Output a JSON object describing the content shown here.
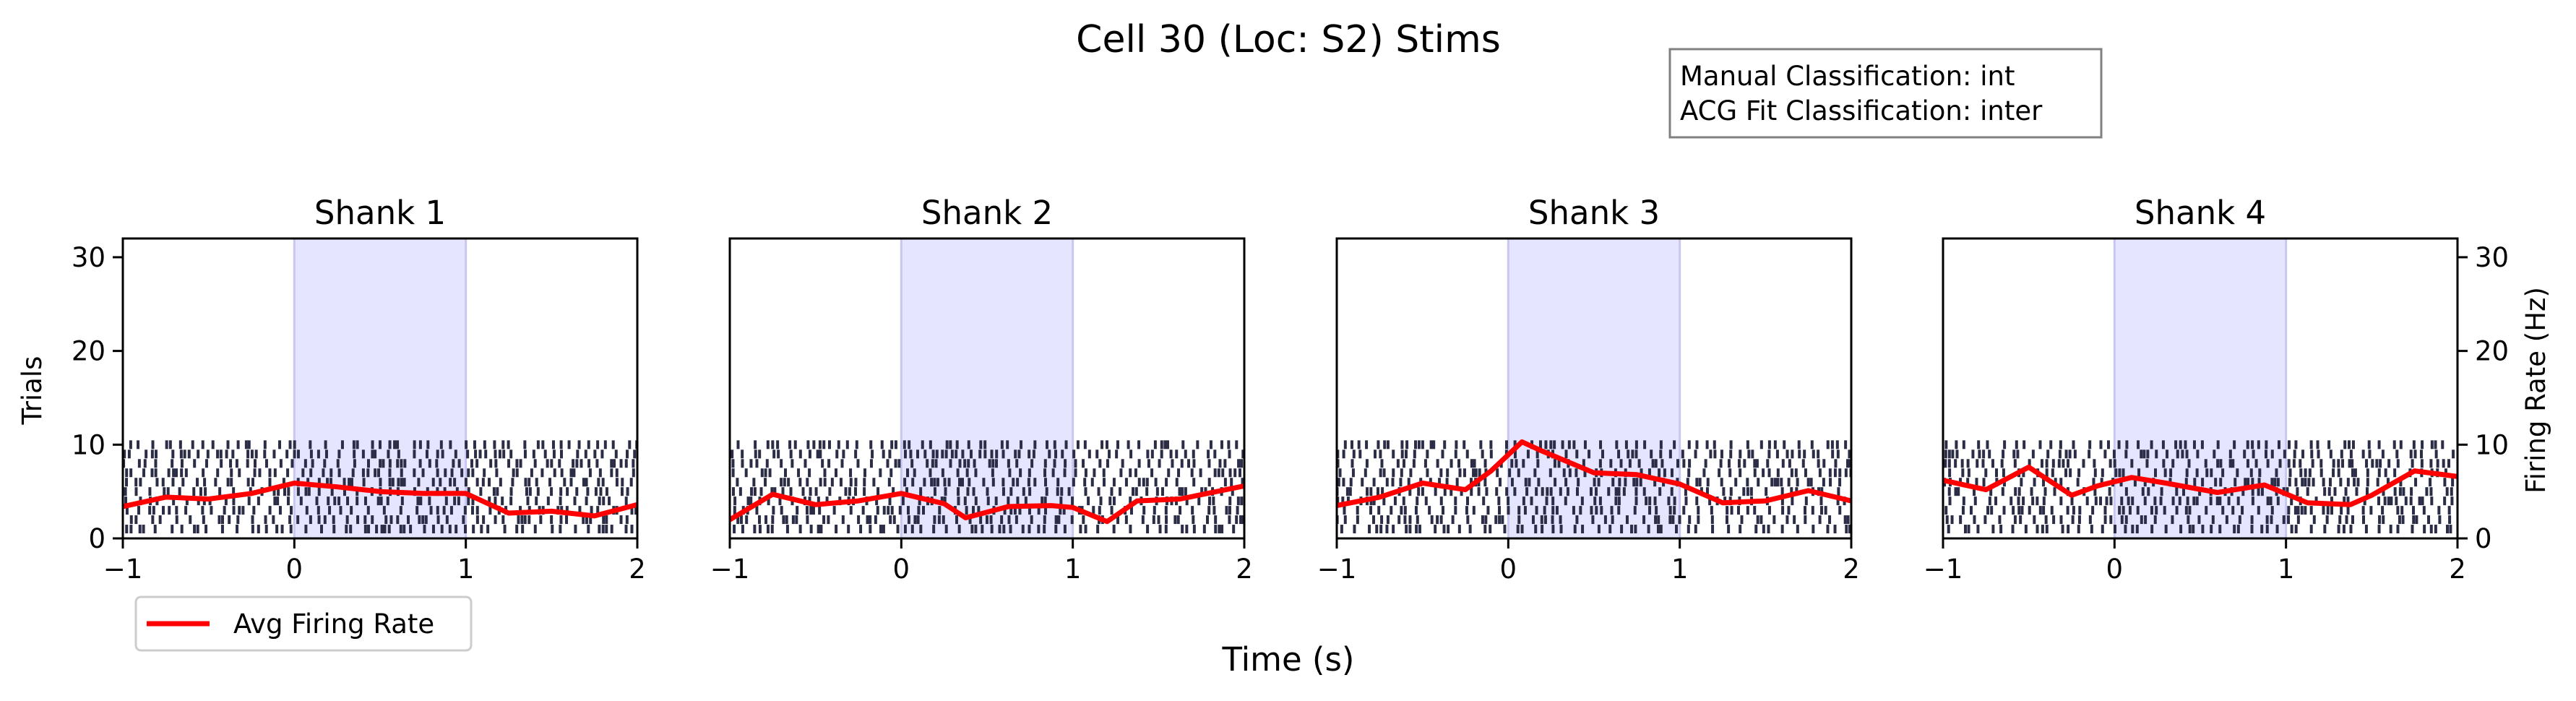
{
  "figure": {
    "title": "Cell 30 (Loc: S2) Stims",
    "xlabel": "Time (s)",
    "ylabel_left": "Trials",
    "ylabel_right": "Firing Rate (Hz)"
  },
  "info_box": {
    "line1": "Manual Classification: int",
    "line2": "ACG Fit Classification: inter"
  },
  "legend": {
    "label": "Avg Firing Rate",
    "placement": "lower-left (below Shank 1)"
  },
  "colors": {
    "rate_line": "#ff0000",
    "stim_shade": "#e5e5ff",
    "stim_edge": "#c7c7f2",
    "raster": "#2a2d45"
  },
  "chart_data": [
    {
      "type": "line",
      "title": "Shank 1",
      "xlim": [
        -1,
        2
      ],
      "ylim": [
        0,
        32
      ],
      "xticks": [
        -1,
        0,
        1,
        2
      ],
      "xtick_labels": [
        "−1",
        "0",
        "1",
        "2"
      ],
      "yticks": [
        0,
        10,
        20,
        30
      ],
      "ytick_labels": [
        "0",
        "10",
        "20",
        "30"
      ],
      "stim_window": [
        0,
        1
      ],
      "raster_trials": 10,
      "series": [
        {
          "name": "Avg Firing Rate",
          "x": [
            -1,
            -0.75,
            -0.5,
            -0.25,
            0,
            0.25,
            0.5,
            0.75,
            1,
            1.25,
            1.5,
            1.75,
            2
          ],
          "y": [
            3.4,
            4.4,
            4.2,
            4.8,
            5.9,
            5.5,
            5.0,
            4.8,
            4.8,
            2.7,
            2.9,
            2.4,
            3.6
          ]
        }
      ]
    },
    {
      "type": "line",
      "title": "Shank 2",
      "xlim": [
        -1,
        2
      ],
      "ylim": [
        0,
        32
      ],
      "xticks": [
        -1,
        0,
        1,
        2
      ],
      "xtick_labels": [
        "−1",
        "0",
        "1",
        "2"
      ],
      "yticks": [],
      "ytick_labels": [],
      "stim_window": [
        0,
        1
      ],
      "raster_trials": 10,
      "series": [
        {
          "name": "Avg Firing Rate",
          "x": [
            -1,
            -0.75,
            -0.5,
            -0.25,
            0,
            0.25,
            0.375,
            0.625,
            0.875,
            1.0,
            1.2,
            1.375,
            1.625,
            2
          ],
          "y": [
            2.0,
            4.7,
            3.6,
            4.0,
            4.8,
            3.7,
            2.2,
            3.4,
            3.5,
            3.3,
            1.8,
            4.0,
            4.2,
            5.6
          ]
        }
      ]
    },
    {
      "type": "line",
      "title": "Shank 3",
      "xlim": [
        -1,
        2
      ],
      "ylim": [
        0,
        32
      ],
      "xticks": [
        -1,
        0,
        1,
        2
      ],
      "xtick_labels": [
        "−1",
        "0",
        "1",
        "2"
      ],
      "yticks": [],
      "ytick_labels": [],
      "stim_window": [
        0,
        1
      ],
      "raster_trials": 10,
      "series": [
        {
          "name": "Avg Firing Rate",
          "x": [
            -1,
            -0.75,
            -0.5,
            -0.25,
            -0.1,
            0.08,
            0.2,
            0.5,
            0.75,
            1,
            1.25,
            1.5,
            1.75,
            2
          ],
          "y": [
            3.5,
            4.4,
            5.9,
            5.2,
            7.2,
            10.3,
            9.3,
            7.0,
            6.8,
            5.8,
            3.8,
            4.0,
            5.1,
            4.0
          ]
        }
      ]
    },
    {
      "type": "line",
      "title": "Shank 4",
      "xlim": [
        -1,
        2
      ],
      "ylim": [
        0,
        32
      ],
      "xticks": [
        -1,
        0,
        1,
        2
      ],
      "xtick_labels": [
        "−1",
        "0",
        "1",
        "2"
      ],
      "yticks": [
        0,
        10,
        20,
        30
      ],
      "ytick_labels": [
        "0",
        "10",
        "20",
        "30"
      ],
      "stim_window": [
        0,
        1
      ],
      "raster_trials": 10,
      "series": [
        {
          "name": "Avg Firing Rate",
          "x": [
            -1,
            -0.75,
            -0.5,
            -0.25,
            -0.1,
            0.1,
            0.3,
            0.6,
            0.875,
            1.125,
            1.375,
            1.5,
            1.75,
            2
          ],
          "y": [
            6.2,
            5.2,
            7.6,
            4.6,
            5.6,
            6.5,
            5.9,
            4.9,
            5.7,
            3.8,
            3.6,
            4.6,
            7.2,
            6.6
          ]
        }
      ]
    }
  ]
}
